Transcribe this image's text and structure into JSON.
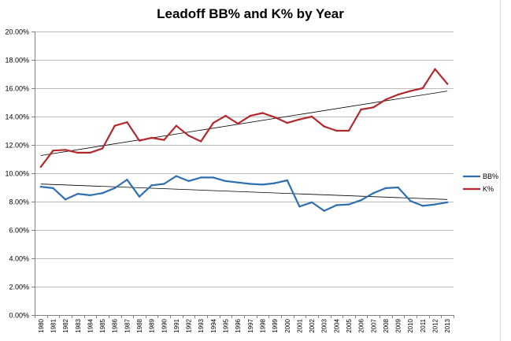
{
  "chart_data": {
    "type": "line",
    "title": "Leadoff BB% and K% by Year",
    "xlabel": "",
    "ylabel": "",
    "categories": [
      "1980",
      "1981",
      "1982",
      "1983",
      "1984",
      "1985",
      "1986",
      "1987",
      "1988",
      "1989",
      "1990",
      "1991",
      "1992",
      "1993",
      "1994",
      "1995",
      "1996",
      "1997",
      "1998",
      "1999",
      "2000",
      "2001",
      "2002",
      "2003",
      "2004",
      "2005",
      "2006",
      "2007",
      "2008",
      "2009",
      "2010",
      "2011",
      "2012",
      "2013"
    ],
    "y_ticks": [
      "0.00%",
      "2.00%",
      "4.00%",
      "6.00%",
      "8.00%",
      "10.00%",
      "12.00%",
      "14.00%",
      "16.00%",
      "18.00%",
      "20.00%"
    ],
    "ylim": [
      0,
      20
    ],
    "grid": true,
    "legend_position": "right",
    "series": [
      {
        "name": "BB%",
        "color": "#2e6fb0",
        "values": [
          9.05,
          8.95,
          8.15,
          8.55,
          8.45,
          8.6,
          8.95,
          9.55,
          8.35,
          9.15,
          9.25,
          9.8,
          9.45,
          9.7,
          9.7,
          9.45,
          9.35,
          9.25,
          9.2,
          9.3,
          9.5,
          7.65,
          7.95,
          7.35,
          7.75,
          7.8,
          8.1,
          8.6,
          8.95,
          9.0,
          8.05,
          7.7,
          7.8,
          7.95
        ],
        "trend": [
          9.24,
          8.15
        ]
      },
      {
        "name": "K%",
        "color": "#b3282d",
        "values": [
          10.45,
          11.6,
          11.65,
          11.45,
          11.45,
          11.75,
          13.35,
          13.6,
          12.3,
          12.5,
          12.35,
          13.35,
          12.65,
          12.25,
          13.55,
          14.05,
          13.5,
          14.05,
          14.25,
          13.95,
          13.55,
          13.8,
          14.0,
          13.3,
          13.0,
          13.0,
          14.5,
          14.65,
          15.2,
          15.55,
          15.8,
          16.0,
          17.35,
          16.3
        ],
        "trend": [
          11.25,
          15.8
        ]
      }
    ]
  }
}
